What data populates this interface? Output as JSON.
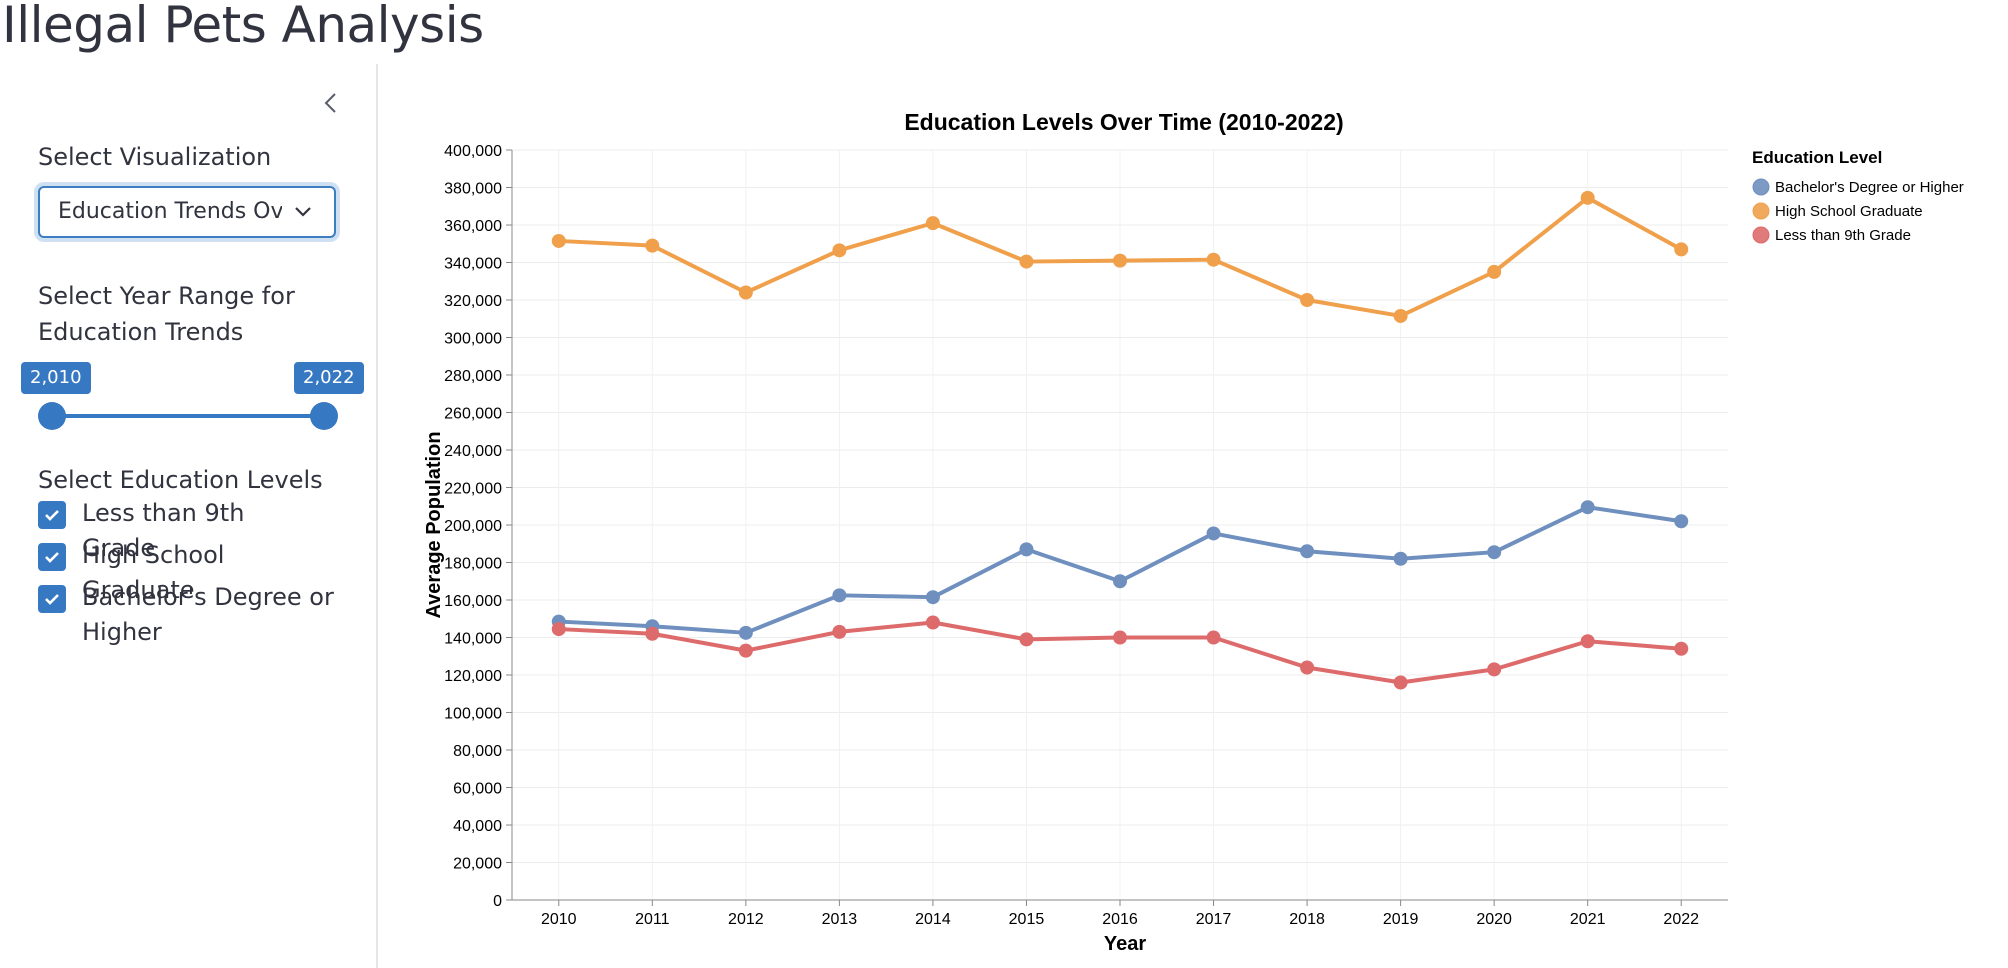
{
  "app": {
    "title": "Illegal Pets Analysis"
  },
  "sidebar": {
    "visualization_label": "Select Visualization",
    "visualization_value": "Education Trends Over Time",
    "year_range_label": "Select Year Range for Education Trends",
    "year_range": {
      "min_label": "2,010",
      "max_label": "2,022",
      "min": 2010,
      "max": 2022,
      "selected": [
        2010,
        2022
      ]
    },
    "education_label": "Select Education Levels",
    "education_options": [
      {
        "label": "Less than 9th Grade",
        "checked": true
      },
      {
        "label": "High School Graduate",
        "checked": true
      },
      {
        "label": "Bachelor's Degree or Higher",
        "checked": true
      }
    ]
  },
  "colors": {
    "accent": "#3778c2",
    "sidebar_divider": "#e6e6ea"
  },
  "chart_data": {
    "type": "line",
    "title": "Education Levels Over Time (2010-2022)",
    "xlabel": "Year",
    "ylabel": "Average Population",
    "x": [
      "2010",
      "2011",
      "2012",
      "2013",
      "2014",
      "2015",
      "2016",
      "2017",
      "2018",
      "2019",
      "2020",
      "2021",
      "2022"
    ],
    "ylim": [
      0,
      400000
    ],
    "yticks": [
      "0",
      "20,000",
      "40,000",
      "60,000",
      "80,000",
      "100,000",
      "120,000",
      "140,000",
      "160,000",
      "180,000",
      "200,000",
      "220,000",
      "240,000",
      "260,000",
      "280,000",
      "300,000",
      "320,000",
      "340,000",
      "360,000",
      "380,000",
      "400,000"
    ],
    "grid": true,
    "legend_title": "Education Level",
    "legend_position": "top-right",
    "series": [
      {
        "name": "Bachelor's Degree or Higher",
        "color": "#6f8fbf",
        "values": [
          148500,
          146000,
          142500,
          162500,
          161500,
          187000,
          170000,
          195500,
          186000,
          182000,
          185500,
          209500,
          202000
        ]
      },
      {
        "name": "High School Graduate",
        "color": "#f0a04b",
        "values": [
          351500,
          349000,
          324000,
          346500,
          361000,
          340500,
          341000,
          341500,
          320000,
          311500,
          335000,
          374500,
          347000
        ]
      },
      {
        "name": "Less than 9th Grade",
        "color": "#de6b6b",
        "values": [
          144500,
          142000,
          133000,
          143000,
          148000,
          139000,
          140000,
          140000,
          124000,
          116000,
          123000,
          138000,
          134000
        ]
      }
    ]
  }
}
